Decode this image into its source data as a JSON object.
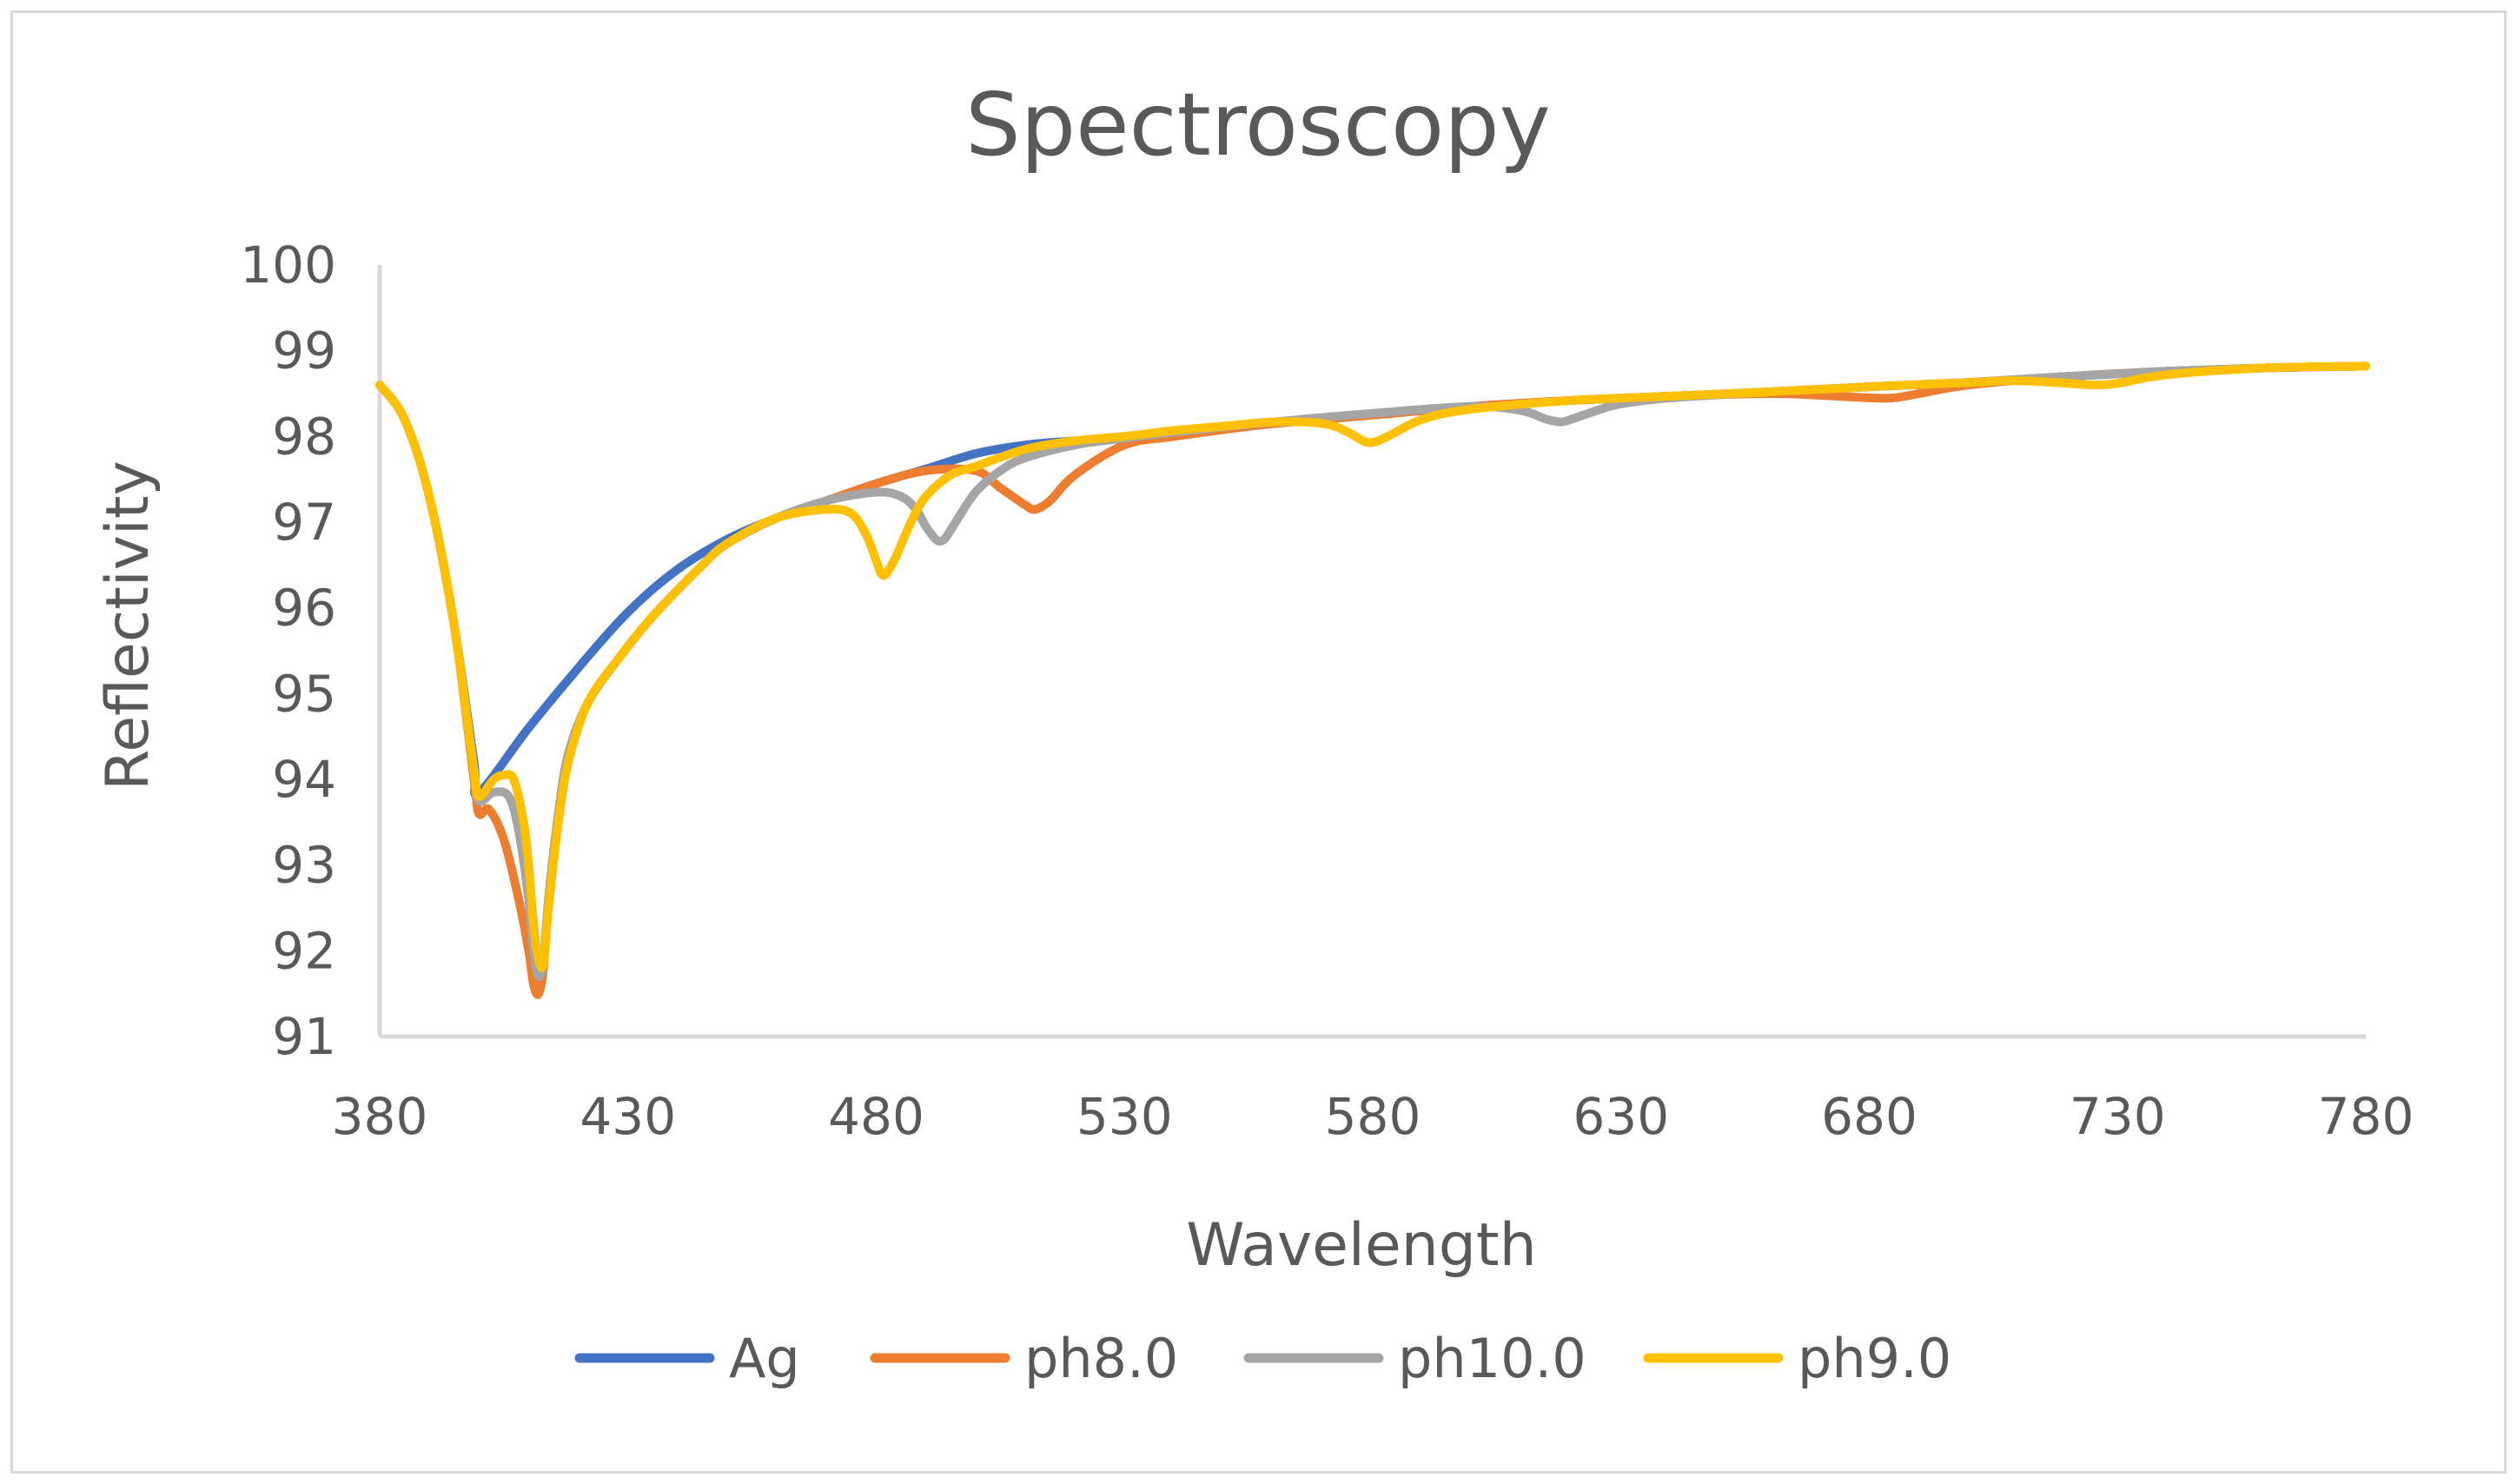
{
  "colors": {
    "Ag": "#4472C4",
    "ph8.0": "#ED7D31",
    "ph10.0": "#A5A5A5",
    "ph9.0": "#FFC000",
    "axis": "#d9d9d9",
    "text": "#595959"
  },
  "chart_data": {
    "type": "line",
    "title": "Spectroscopy",
    "xlabel": "Wavelength",
    "ylabel": "Reflectivity",
    "xlim": [
      380,
      780
    ],
    "ylim": [
      91,
      100
    ],
    "xticks": [
      380,
      430,
      480,
      530,
      580,
      630,
      680,
      730,
      780
    ],
    "yticks": [
      91,
      92,
      93,
      94,
      95,
      96,
      97,
      98,
      99,
      100
    ],
    "grid": false,
    "legend_position": "bottom",
    "series": [
      {
        "name": "Ag",
        "x": [
          380,
          385,
          390,
          395,
          399,
          400,
          410,
          420,
          430,
          440,
          450,
          460,
          470,
          480,
          490,
          500,
          510,
          520,
          530,
          540,
          560,
          580,
          600,
          620,
          640,
          660,
          680,
          700,
          720,
          740,
          760,
          780
        ],
        "y": [
          98.6,
          98.2,
          97.3,
          95.8,
          94.2,
          93.85,
          94.6,
          95.3,
          95.95,
          96.45,
          96.8,
          97.05,
          97.25,
          97.45,
          97.62,
          97.8,
          97.9,
          97.95,
          98.0,
          98.05,
          98.15,
          98.25,
          98.35,
          98.42,
          98.47,
          98.52,
          98.58,
          98.63,
          98.7,
          98.76,
          98.8,
          98.82
        ]
      },
      {
        "name": "ph8.0",
        "x": [
          380,
          385,
          390,
          395,
          399,
          400,
          402,
          405,
          408,
          410,
          411,
          412,
          413,
          414,
          416,
          418,
          422,
          428,
          435,
          445,
          450,
          460,
          470,
          480,
          490,
          500,
          505,
          510,
          512,
          515,
          520,
          530,
          540,
          560,
          580,
          600,
          620,
          640,
          660,
          670,
          680,
          685,
          690,
          700,
          720,
          740,
          760,
          780
        ],
        "y": [
          98.6,
          98.2,
          97.3,
          95.8,
          94.0,
          93.6,
          93.65,
          93.3,
          92.6,
          92.0,
          91.6,
          91.5,
          91.8,
          92.6,
          93.6,
          94.3,
          94.9,
          95.4,
          95.9,
          96.5,
          96.75,
          97.05,
          97.25,
          97.45,
          97.6,
          97.6,
          97.4,
          97.2,
          97.15,
          97.25,
          97.55,
          97.9,
          98.0,
          98.15,
          98.25,
          98.35,
          98.42,
          98.47,
          98.5,
          98.48,
          98.45,
          98.45,
          98.5,
          98.6,
          98.7,
          98.76,
          98.8,
          98.82
        ]
      },
      {
        "name": "ph10.0",
        "x": [
          380,
          385,
          390,
          395,
          399,
          400,
          403,
          406,
          408,
          410,
          411,
          412,
          413,
          414,
          416,
          418,
          422,
          428,
          435,
          445,
          450,
          460,
          470,
          480,
          485,
          488,
          490,
          492,
          493,
          494,
          496,
          500,
          505,
          510,
          520,
          530,
          540,
          560,
          580,
          600,
          610,
          615,
          618,
          620,
          625,
          630,
          640,
          660,
          680,
          700,
          720,
          740,
          760,
          780
        ],
        "y": [
          98.6,
          98.2,
          97.3,
          95.8,
          94.1,
          93.75,
          93.85,
          93.8,
          93.4,
          92.6,
          92.0,
          91.7,
          91.9,
          92.6,
          93.6,
          94.3,
          94.9,
          95.4,
          95.9,
          96.5,
          96.75,
          97.05,
          97.25,
          97.35,
          97.3,
          97.15,
          96.95,
          96.8,
          96.78,
          96.82,
          97.0,
          97.35,
          97.6,
          97.75,
          97.9,
          97.98,
          98.05,
          98.17,
          98.27,
          98.35,
          98.3,
          98.2,
          98.17,
          98.2,
          98.3,
          98.38,
          98.45,
          98.52,
          98.58,
          98.63,
          98.7,
          98.76,
          98.8,
          98.82
        ]
      },
      {
        "name": "ph9.0",
        "x": [
          380,
          385,
          390,
          395,
          399,
          400,
          403,
          405,
          407,
          409,
          410,
          411,
          412,
          413,
          414,
          416,
          418,
          422,
          428,
          435,
          445,
          450,
          460,
          470,
          475,
          478,
          480,
          481,
          482,
          484,
          487,
          490,
          495,
          500,
          510,
          520,
          530,
          540,
          550,
          560,
          570,
          575,
          578,
          580,
          583,
          590,
          600,
          620,
          640,
          660,
          680,
          700,
          710,
          720,
          725,
          730,
          740,
          760,
          780
        ],
        "y": [
          98.6,
          98.2,
          97.3,
          95.8,
          94.1,
          93.8,
          94.0,
          94.05,
          94.0,
          93.5,
          93.0,
          92.3,
          91.9,
          91.85,
          92.5,
          93.5,
          94.2,
          94.9,
          95.4,
          95.9,
          96.5,
          96.75,
          97.05,
          97.15,
          97.1,
          96.85,
          96.55,
          96.4,
          96.4,
          96.6,
          97.0,
          97.3,
          97.55,
          97.65,
          97.85,
          97.95,
          98.0,
          98.07,
          98.12,
          98.17,
          98.15,
          98.05,
          97.95,
          97.93,
          98.0,
          98.2,
          98.32,
          98.42,
          98.47,
          98.52,
          98.58,
          98.63,
          98.65,
          98.62,
          98.6,
          98.62,
          98.72,
          98.8,
          98.82
        ]
      }
    ]
  }
}
